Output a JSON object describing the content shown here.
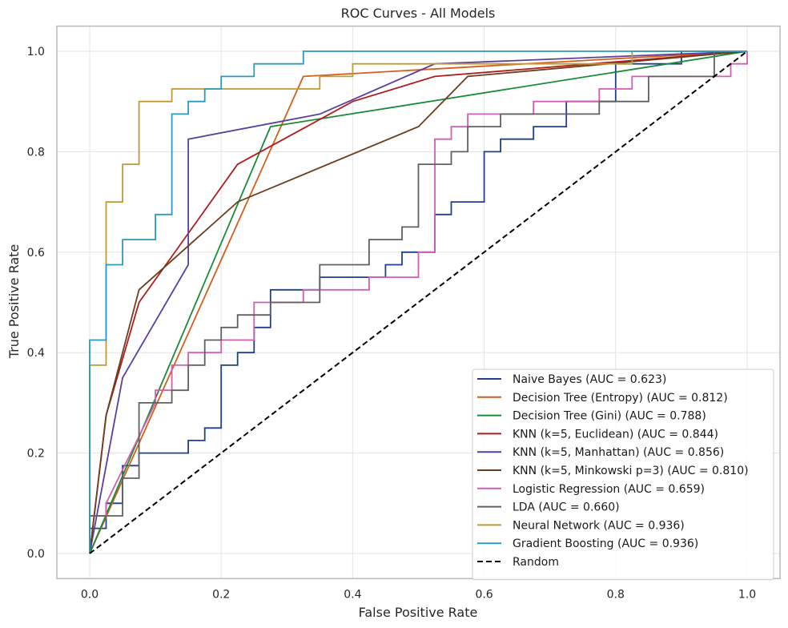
{
  "chart_data": {
    "type": "line",
    "title": "ROC Curves - All Models",
    "xlabel": "False Positive Rate",
    "ylabel": "True Positive Rate",
    "xlim": [
      -0.05,
      1.05
    ],
    "ylim": [
      -0.05,
      1.05
    ],
    "xticks": [
      0.0,
      0.2,
      0.4,
      0.6,
      0.8,
      1.0
    ],
    "xtick_labels": [
      "0.0",
      "0.2",
      "0.4",
      "0.6",
      "0.8",
      "1.0"
    ],
    "yticks": [
      0.0,
      0.2,
      0.4,
      0.6,
      0.8,
      1.0
    ],
    "ytick_labels": [
      "0.0",
      "0.2",
      "0.4",
      "0.6",
      "0.8",
      "1.0"
    ],
    "grid": true,
    "legend_position": "lower-right",
    "series": [
      {
        "name": "Naive Bayes (AUC = 0.623)",
        "color": "#1f3f8f",
        "style": "solid",
        "x": [
          0,
          0,
          0.025,
          0.025,
          0.05,
          0.05,
          0.075,
          0.075,
          0.15,
          0.15,
          0.175,
          0.175,
          0.2,
          0.2,
          0.225,
          0.225,
          0.25,
          0.25,
          0.275,
          0.275,
          0.35,
          0.35,
          0.45,
          0.45,
          0.475,
          0.475,
          0.525,
          0.525,
          0.55,
          0.55,
          0.6,
          0.6,
          0.625,
          0.625,
          0.675,
          0.675,
          0.725,
          0.725,
          0.8,
          0.8,
          0.9,
          0.9,
          1.0
        ],
        "y": [
          0,
          0.05,
          0.05,
          0.1,
          0.1,
          0.175,
          0.175,
          0.2,
          0.2,
          0.225,
          0.225,
          0.25,
          0.25,
          0.375,
          0.375,
          0.4,
          0.4,
          0.45,
          0.45,
          0.525,
          0.525,
          0.55,
          0.55,
          0.575,
          0.575,
          0.6,
          0.6,
          0.675,
          0.675,
          0.7,
          0.7,
          0.8,
          0.8,
          0.825,
          0.825,
          0.85,
          0.85,
          0.9,
          0.9,
          0.975,
          0.975,
          1.0,
          1.0
        ]
      },
      {
        "name": "Decision Tree (Entropy) (AUC = 0.812)",
        "color": "#d35f1a",
        "style": "solid",
        "x": [
          0,
          0.325,
          1.0
        ],
        "y": [
          0,
          0.95,
          1.0
        ]
      },
      {
        "name": "Decision Tree (Gini) (AUC = 0.788)",
        "color": "#1a8a3a",
        "style": "solid",
        "x": [
          0,
          0.275,
          1.0
        ],
        "y": [
          0,
          0.85,
          1.0
        ]
      },
      {
        "name": "KNN (k=5, Euclidean) (AUC = 0.844)",
        "color": "#b01c1c",
        "style": "solid",
        "x": [
          0,
          0.025,
          0.075,
          0.225,
          0.4,
          0.525,
          1.0
        ],
        "y": [
          0,
          0.275,
          0.5,
          0.775,
          0.9,
          0.95,
          1.0
        ]
      },
      {
        "name": "KNN (k=5, Manhattan) (AUC = 0.856)",
        "color": "#5b3fa0",
        "style": "solid",
        "x": [
          0,
          0.05,
          0.15,
          0.15,
          0.35,
          0.525,
          1.0
        ],
        "y": [
          0,
          0.35,
          0.575,
          0.825,
          0.875,
          0.975,
          1.0
        ]
      },
      {
        "name": "KNN (k=5, Minkowski p=3) (AUC = 0.810)",
        "color": "#6b3f1f",
        "style": "solid",
        "x": [
          0,
          0.025,
          0.075,
          0.225,
          0.5,
          0.575,
          1.0
        ],
        "y": [
          0,
          0.275,
          0.525,
          0.7,
          0.85,
          0.95,
          1.0
        ]
      },
      {
        "name": "Logistic Regression (AUC = 0.659)",
        "color": "#d05fb0",
        "style": "solid",
        "x": [
          0,
          0,
          0.025,
          0.025,
          0.1,
          0.1,
          0.125,
          0.125,
          0.15,
          0.15,
          0.2,
          0.2,
          0.25,
          0.25,
          0.325,
          0.325,
          0.425,
          0.425,
          0.475,
          0.475,
          0.5,
          0.5,
          0.525,
          0.525,
          0.55,
          0.55,
          0.575,
          0.575,
          0.675,
          0.675,
          0.775,
          0.775,
          0.825,
          0.825,
          0.95,
          0.95,
          0.975,
          0.975,
          1.0,
          1.0
        ],
        "y": [
          0,
          0.075,
          0.075,
          0.1,
          0.3,
          0.325,
          0.325,
          0.375,
          0.375,
          0.4,
          0.4,
          0.425,
          0.425,
          0.5,
          0.5,
          0.525,
          0.525,
          0.55,
          0.55,
          0.55,
          0.55,
          0.6,
          0.6,
          0.825,
          0.825,
          0.85,
          0.85,
          0.875,
          0.875,
          0.9,
          0.9,
          0.925,
          0.925,
          0.95,
          0.95,
          0.95,
          0.95,
          0.975,
          0.975,
          1.0
        ]
      },
      {
        "name": "LDA (AUC = 0.660)",
        "color": "#606060",
        "style": "solid",
        "x": [
          0,
          0,
          0.05,
          0.05,
          0.075,
          0.075,
          0.125,
          0.125,
          0.15,
          0.15,
          0.175,
          0.175,
          0.2,
          0.2,
          0.225,
          0.225,
          0.275,
          0.275,
          0.35,
          0.35,
          0.425,
          0.425,
          0.475,
          0.475,
          0.5,
          0.5,
          0.55,
          0.55,
          0.575,
          0.575,
          0.625,
          0.625,
          0.775,
          0.775,
          0.85,
          0.85,
          0.95,
          0.95,
          1.0
        ],
        "y": [
          0,
          0.075,
          0.075,
          0.15,
          0.15,
          0.3,
          0.3,
          0.325,
          0.325,
          0.375,
          0.375,
          0.425,
          0.425,
          0.45,
          0.45,
          0.475,
          0.475,
          0.5,
          0.5,
          0.575,
          0.575,
          0.625,
          0.625,
          0.65,
          0.65,
          0.775,
          0.775,
          0.8,
          0.8,
          0.85,
          0.85,
          0.875,
          0.875,
          0.9,
          0.9,
          0.95,
          0.95,
          1.0,
          1.0
        ]
      },
      {
        "name": "Neural Network (AUC = 0.936)",
        "color": "#c09a35",
        "style": "solid",
        "x": [
          0,
          0,
          0.025,
          0.025,
          0.05,
          0.05,
          0.075,
          0.075,
          0.125,
          0.125,
          0.35,
          0.35,
          0.4,
          0.4,
          0.825,
          0.825,
          1.0
        ],
        "y": [
          0,
          0.375,
          0.375,
          0.7,
          0.7,
          0.775,
          0.775,
          0.9,
          0.9,
          0.925,
          0.925,
          0.95,
          0.95,
          0.975,
          0.975,
          1.0,
          1.0
        ]
      },
      {
        "name": "Gradient Boosting (AUC = 0.936)",
        "color": "#2a9bc0",
        "style": "solid",
        "x": [
          0,
          0,
          0.025,
          0.025,
          0.05,
          0.05,
          0.1,
          0.1,
          0.125,
          0.125,
          0.15,
          0.15,
          0.175,
          0.175,
          0.2,
          0.2,
          0.25,
          0.25,
          0.325,
          0.325,
          1.0
        ],
        "y": [
          0,
          0.425,
          0.425,
          0.575,
          0.575,
          0.625,
          0.625,
          0.675,
          0.675,
          0.875,
          0.875,
          0.9,
          0.9,
          0.925,
          0.925,
          0.95,
          0.95,
          0.975,
          0.975,
          1.0,
          1.0
        ]
      },
      {
        "name": "Random",
        "color": "#000000",
        "style": "dashed",
        "x": [
          0,
          1
        ],
        "y": [
          0,
          1
        ]
      }
    ]
  }
}
